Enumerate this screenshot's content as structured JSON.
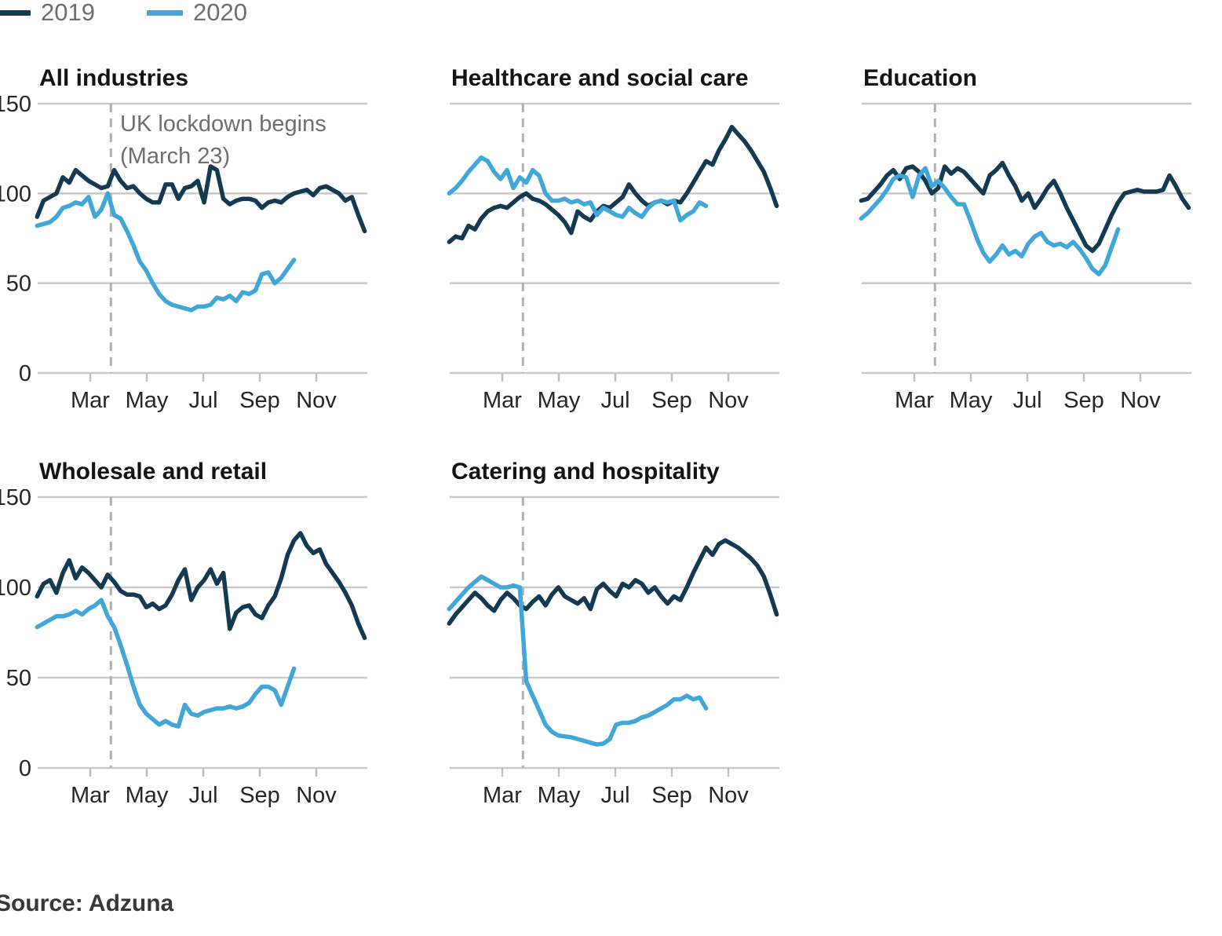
{
  "legend": {
    "items": [
      {
        "label": "2019",
        "color": "#133a52"
      },
      {
        "label": "2020",
        "color": "#41a7d9"
      }
    ]
  },
  "annotation": {
    "line1": "UK lockdown begins",
    "line2": "(March 23)",
    "x_month": 2.73
  },
  "source": "Source: Adzuna",
  "axis": {
    "y_ticks": [
      150,
      100,
      50,
      0
    ],
    "y_min": 0,
    "y_max": 150,
    "x_tick_labels": [
      "Mar",
      "May",
      "Jul",
      "Sep",
      "Nov"
    ],
    "x_tick_months": [
      2,
      4,
      6,
      8,
      10
    ],
    "x_range_months": [
      0,
      12
    ],
    "grid": "horizontal-only"
  },
  "styles": {
    "grid_color": "#c9c9c9",
    "tick_color": "#c0c0c0",
    "dashed_line_color": "#b0b0b0",
    "text_color": "#262626",
    "muted_text_color": "#6f6f6f",
    "line_width": 5.5
  },
  "chart_data": [
    {
      "type": "line",
      "title": "All industries",
      "show_y_labels": true,
      "show_lockdown_annotation": true,
      "series": [
        {
          "name": "2019",
          "color": "#133a52",
          "x_start_month": 0.12,
          "x_step_month": 0.2273,
          "values": [
            87,
            96,
            98,
            100,
            109,
            106,
            113,
            110,
            107,
            105,
            103,
            104,
            113,
            107,
            103,
            104,
            100,
            97,
            95,
            95,
            105,
            105,
            97,
            103,
            104,
            107,
            95,
            115,
            113,
            97,
            94,
            96,
            97,
            97,
            96,
            92,
            95,
            96,
            95,
            98,
            100,
            101,
            102,
            99,
            103,
            104,
            102,
            100,
            96,
            98,
            88,
            79
          ]
        },
        {
          "name": "2020",
          "color": "#41a7d9",
          "x_start_month": 0.12,
          "x_step_month": 0.2273,
          "values": [
            82,
            83,
            84,
            87,
            92,
            93,
            95,
            94,
            98,
            87,
            91,
            100,
            88,
            86,
            79,
            71,
            62,
            57,
            50,
            44,
            40,
            38,
            37,
            36,
            35,
            37,
            37,
            38,
            42,
            41,
            43,
            40,
            45,
            44,
            46,
            55,
            56,
            50,
            53,
            58,
            63
          ]
        }
      ]
    },
    {
      "type": "line",
      "title": "Healthcare and social care",
      "show_y_labels": false,
      "show_lockdown_annotation": false,
      "series": [
        {
          "name": "2019",
          "color": "#133a52",
          "x_start_month": 0.12,
          "x_step_month": 0.2273,
          "values": [
            73,
            76,
            75,
            82,
            80,
            86,
            90,
            92,
            93,
            92,
            95,
            98,
            100,
            97,
            96,
            94,
            91,
            88,
            84,
            78,
            90,
            87,
            85,
            90,
            93,
            92,
            95,
            98,
            105,
            100,
            96,
            93,
            95,
            96,
            94,
            96,
            95,
            100,
            106,
            112,
            118,
            116,
            124,
            130,
            137,
            133,
            129,
            124,
            118,
            112,
            103,
            93
          ]
        },
        {
          "name": "2020",
          "color": "#41a7d9",
          "x_start_month": 0.12,
          "x_step_month": 0.2273,
          "values": [
            100,
            103,
            107,
            112,
            116,
            120,
            118,
            112,
            108,
            113,
            103,
            109,
            106,
            113,
            110,
            100,
            96,
            96,
            97,
            95,
            96,
            94,
            95,
            88,
            92,
            90,
            88,
            87,
            92,
            89,
            87,
            92,
            95,
            96,
            95,
            96,
            85,
            88,
            90,
            95,
            93
          ]
        }
      ]
    },
    {
      "type": "line",
      "title": "Education",
      "show_y_labels": false,
      "show_lockdown_annotation": false,
      "series": [
        {
          "name": "2019",
          "color": "#133a52",
          "x_start_month": 0.12,
          "x_step_month": 0.2273,
          "values": [
            96,
            97,
            101,
            105,
            110,
            113,
            108,
            114,
            115,
            112,
            107,
            100,
            103,
            115,
            111,
            114,
            112,
            108,
            104,
            100,
            110,
            113,
            117,
            110,
            104,
            96,
            100,
            92,
            97,
            103,
            107,
            100,
            92,
            85,
            78,
            71,
            68,
            72,
            80,
            88,
            95,
            100,
            101,
            102,
            101,
            101,
            101,
            102,
            110,
            104,
            97,
            92
          ]
        },
        {
          "name": "2020",
          "color": "#41a7d9",
          "x_start_month": 0.12,
          "x_step_month": 0.2273,
          "values": [
            86,
            89,
            93,
            97,
            102,
            108,
            110,
            109,
            98,
            110,
            114,
            104,
            107,
            103,
            98,
            94,
            94,
            85,
            75,
            67,
            62,
            66,
            71,
            66,
            68,
            65,
            72,
            76,
            78,
            73,
            71,
            72,
            70,
            73,
            69,
            64,
            58,
            55,
            60,
            70,
            80
          ]
        }
      ]
    },
    {
      "type": "line",
      "title": "Wholesale and retail",
      "show_y_labels": true,
      "show_lockdown_annotation": false,
      "series": [
        {
          "name": "2019",
          "color": "#133a52",
          "x_start_month": 0.12,
          "x_step_month": 0.2273,
          "values": [
            95,
            102,
            104,
            97,
            108,
            115,
            105,
            111,
            108,
            104,
            100,
            107,
            103,
            98,
            96,
            96,
            95,
            89,
            91,
            88,
            90,
            96,
            104,
            110,
            93,
            100,
            104,
            110,
            102,
            108,
            77,
            86,
            89,
            90,
            85,
            83,
            90,
            95,
            105,
            118,
            126,
            130,
            123,
            119,
            121,
            113,
            108,
            103,
            97,
            90,
            80,
            72
          ]
        },
        {
          "name": "2020",
          "color": "#41a7d9",
          "x_start_month": 0.12,
          "x_step_month": 0.2273,
          "values": [
            78,
            80,
            82,
            84,
            84,
            85,
            87,
            85,
            88,
            90,
            93,
            84,
            78,
            68,
            57,
            45,
            35,
            30,
            27,
            24,
            26,
            24,
            23,
            35,
            30,
            29,
            31,
            32,
            33,
            33,
            34,
            33,
            34,
            36,
            41,
            45,
            45,
            43,
            35,
            45,
            55
          ]
        }
      ]
    },
    {
      "type": "line",
      "title": "Catering and hospitality",
      "show_y_labels": false,
      "show_lockdown_annotation": false,
      "series": [
        {
          "name": "2019",
          "color": "#133a52",
          "x_start_month": 0.12,
          "x_step_month": 0.2273,
          "values": [
            80,
            85,
            89,
            93,
            97,
            94,
            90,
            87,
            93,
            97,
            94,
            90,
            88,
            92,
            95,
            90,
            96,
            100,
            95,
            93,
            91,
            94,
            88,
            99,
            102,
            98,
            95,
            102,
            100,
            104,
            102,
            97,
            100,
            95,
            91,
            95,
            93,
            100,
            108,
            115,
            122,
            118,
            124,
            126,
            124,
            122,
            119,
            116,
            112,
            106,
            96,
            85
          ]
        },
        {
          "name": "2020",
          "color": "#41a7d9",
          "x_start_month": 0.12,
          "x_step_month": 0.2273,
          "values": [
            88,
            92,
            96,
            100,
            103,
            106,
            104,
            102,
            100,
            100,
            101,
            100,
            48,
            40,
            32,
            24,
            20,
            18,
            17.5,
            17,
            16,
            15,
            14,
            13,
            13.5,
            16,
            24,
            25,
            25,
            26,
            28,
            29,
            31,
            33,
            35,
            38,
            38,
            40,
            38,
            39,
            33
          ]
        }
      ]
    }
  ]
}
